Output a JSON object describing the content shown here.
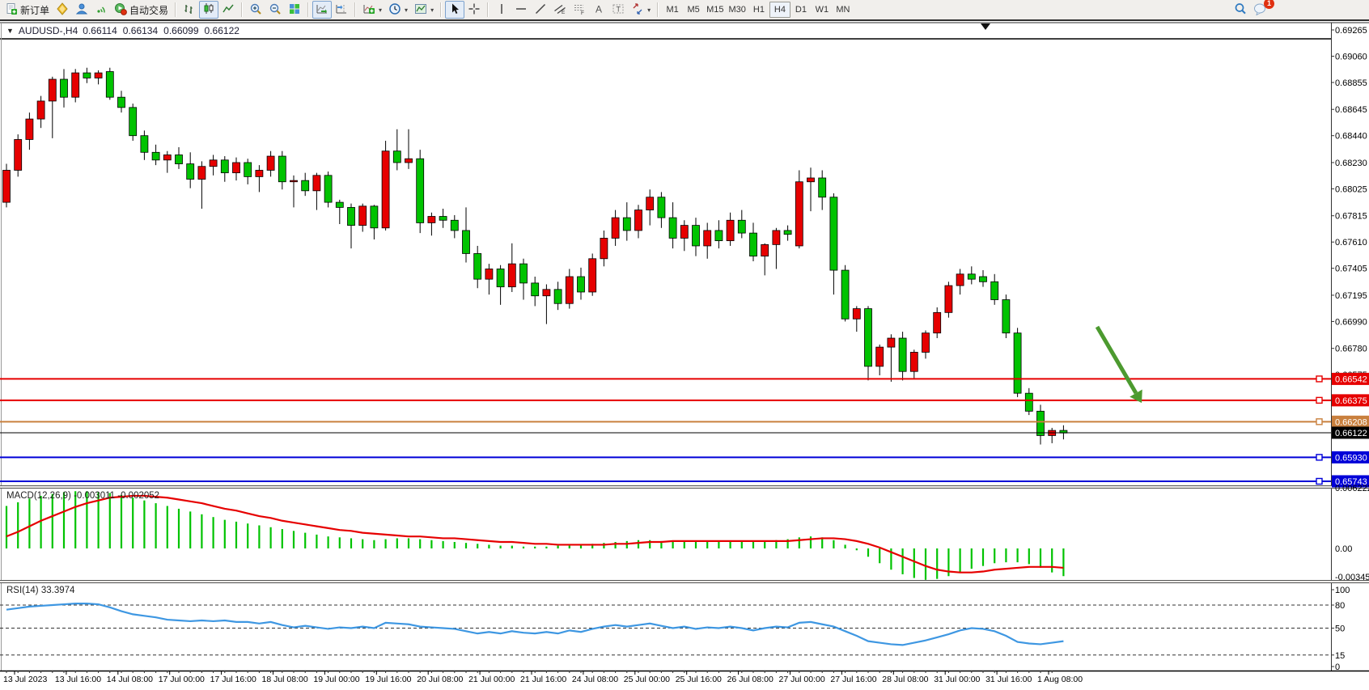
{
  "toolbar": {
    "new_order_label": "新订单",
    "autotrading_label": "自动交易",
    "timeframes": [
      "M1",
      "M5",
      "M15",
      "M30",
      "H1",
      "H4",
      "D1",
      "W1",
      "MN"
    ],
    "active_timeframe": "H4",
    "notification_badge": "1"
  },
  "chart_header": {
    "symbol_period": "AUDUSD-,H4",
    "open": "0.66114",
    "high": "0.66134",
    "low": "0.66099",
    "close": "0.66122"
  },
  "price_axis_ticks": [
    "0.69265",
    "0.69060",
    "0.68855",
    "0.68645",
    "0.68440",
    "0.68230",
    "0.68025",
    "0.67815",
    "0.67610",
    "0.67405",
    "0.67195",
    "0.66990",
    "0.66780",
    "0.66575",
    "0.66370",
    "0.66160",
    "0.65955",
    "0.65745"
  ],
  "time_axis_labels": [
    "13 Jul 2023",
    "13 Jul 16:00",
    "14 Jul 08:00",
    "17 Jul 00:00",
    "17 Jul 16:00",
    "18 Jul 08:00",
    "19 Jul 00:00",
    "19 Jul 16:00",
    "20 Jul 08:00",
    "21 Jul 00:00",
    "21 Jul 16:00",
    "24 Jul 08:00",
    "25 Jul 00:00",
    "25 Jul 16:00",
    "26 Jul 08:00",
    "27 Jul 00:00",
    "27 Jul 16:00",
    "28 Jul 08:00",
    "31 Jul 00:00",
    "31 Jul 16:00",
    "1 Aug 08:00"
  ],
  "horizontal_lines": [
    {
      "price": 0.66542,
      "label": "0.66542",
      "color": "#e60000",
      "width": 2,
      "handle": true
    },
    {
      "price": 0.66375,
      "label": "0.66375",
      "color": "#e60000",
      "width": 2,
      "handle": true
    },
    {
      "price": 0.66208,
      "label": "0.66208",
      "color": "#c9803e",
      "width": 2,
      "handle": true
    },
    {
      "price": 0.66122,
      "label": "0.66122",
      "color": "#000000",
      "width": 1,
      "handle": false
    },
    {
      "price": 0.6593,
      "label": "0.65930",
      "color": "#0000d8",
      "width": 2,
      "handle": true
    },
    {
      "price": 0.65743,
      "label": "0.65743",
      "color": "#0000d8",
      "width": 2,
      "handle": true
    }
  ],
  "indicators": {
    "macd": {
      "name": "MACD(12,26,9)",
      "value_main": "-0.003011",
      "value_signal": "-0.002052",
      "axis": [
        "0.006222",
        "0.00",
        "-0.003451"
      ],
      "hist_color": "#00c300",
      "signal_color": "#e60000"
    },
    "rsi": {
      "name": "RSI(14)",
      "value": "33.3974",
      "axis": [
        "100",
        "80",
        "50",
        "15",
        "0"
      ],
      "levels": [
        80,
        50,
        15
      ],
      "line_color": "#3e97e2"
    }
  },
  "annotation": {
    "type": "down-arrow",
    "color": "#4c9a2f",
    "from": [
      1356,
      404
    ],
    "to": [
      1404,
      486
    ]
  },
  "chart_data": {
    "type": "candlestick",
    "symbol": "AUDUSD",
    "timeframe": "H4",
    "title": "AUDUSD-,H4",
    "ohlc_current": {
      "open": 0.66114,
      "high": 0.66134,
      "low": 0.66099,
      "close": 0.66122
    },
    "up_color": "#e60000",
    "down_color": "#00c300",
    "wick_color": "#000000",
    "y_range": [
      0.65743,
      0.69265
    ],
    "grid": false,
    "candles": [
      [
        0.6792,
        0.6822,
        0.6788,
        0.6817
      ],
      [
        0.6817,
        0.6845,
        0.6812,
        0.6841
      ],
      [
        0.6841,
        0.6862,
        0.6833,
        0.6857
      ],
      [
        0.6857,
        0.6875,
        0.685,
        0.6871
      ],
      [
        0.6871,
        0.689,
        0.6842,
        0.6888
      ],
      [
        0.6888,
        0.6896,
        0.6866,
        0.6874
      ],
      [
        0.6874,
        0.6896,
        0.687,
        0.6893
      ],
      [
        0.6893,
        0.6897,
        0.6885,
        0.6889
      ],
      [
        0.6889,
        0.6895,
        0.6884,
        0.6893
      ],
      [
        0.6894,
        0.6897,
        0.6872,
        0.6874
      ],
      [
        0.6874,
        0.6879,
        0.6862,
        0.6866
      ],
      [
        0.6866,
        0.6869,
        0.684,
        0.6844
      ],
      [
        0.6844,
        0.6848,
        0.6825,
        0.6831
      ],
      [
        0.6831,
        0.6837,
        0.6821,
        0.6825
      ],
      [
        0.6825,
        0.6832,
        0.6815,
        0.6829
      ],
      [
        0.6829,
        0.6835,
        0.6818,
        0.6822
      ],
      [
        0.6822,
        0.6831,
        0.6803,
        0.681
      ],
      [
        0.681,
        0.6824,
        0.6787,
        0.682
      ],
      [
        0.682,
        0.6829,
        0.6813,
        0.6825
      ],
      [
        0.6825,
        0.6828,
        0.6808,
        0.6815
      ],
      [
        0.6815,
        0.6827,
        0.6809,
        0.6823
      ],
      [
        0.6823,
        0.6826,
        0.6806,
        0.6812
      ],
      [
        0.6812,
        0.6821,
        0.68,
        0.6817
      ],
      [
        0.6817,
        0.6832,
        0.6812,
        0.6828
      ],
      [
        0.6828,
        0.6832,
        0.6802,
        0.6808
      ],
      [
        0.6808,
        0.6813,
        0.6788,
        0.6809
      ],
      [
        0.6809,
        0.6815,
        0.6797,
        0.6801
      ],
      [
        0.6801,
        0.6815,
        0.6786,
        0.6813
      ],
      [
        0.6813,
        0.6816,
        0.6788,
        0.6792
      ],
      [
        0.6792,
        0.6794,
        0.6775,
        0.6788
      ],
      [
        0.6788,
        0.6791,
        0.6756,
        0.6774
      ],
      [
        0.6774,
        0.6791,
        0.6769,
        0.6789
      ],
      [
        0.6789,
        0.679,
        0.6763,
        0.6772
      ],
      [
        0.6772,
        0.684,
        0.677,
        0.6832
      ],
      [
        0.6832,
        0.6849,
        0.6817,
        0.6823
      ],
      [
        0.6823,
        0.6849,
        0.6818,
        0.6826
      ],
      [
        0.6826,
        0.6833,
        0.6768,
        0.6776
      ],
      [
        0.6776,
        0.6784,
        0.6766,
        0.6781
      ],
      [
        0.6781,
        0.6787,
        0.6772,
        0.6778
      ],
      [
        0.6778,
        0.6782,
        0.6764,
        0.677
      ],
      [
        0.677,
        0.6788,
        0.6745,
        0.6752
      ],
      [
        0.6752,
        0.6758,
        0.6725,
        0.6732
      ],
      [
        0.6732,
        0.6744,
        0.672,
        0.674
      ],
      [
        0.674,
        0.6743,
        0.6712,
        0.6726
      ],
      [
        0.6726,
        0.676,
        0.6722,
        0.6744
      ],
      [
        0.6744,
        0.6748,
        0.6716,
        0.6729
      ],
      [
        0.6729,
        0.6734,
        0.6711,
        0.6719
      ],
      [
        0.6719,
        0.6728,
        0.6697,
        0.6724
      ],
      [
        0.6724,
        0.673,
        0.6708,
        0.6713
      ],
      [
        0.6713,
        0.674,
        0.6709,
        0.6734
      ],
      [
        0.6734,
        0.6741,
        0.6716,
        0.6722
      ],
      [
        0.6722,
        0.6752,
        0.6719,
        0.6748
      ],
      [
        0.6748,
        0.677,
        0.6742,
        0.6764
      ],
      [
        0.6764,
        0.6786,
        0.6758,
        0.678
      ],
      [
        0.678,
        0.6792,
        0.6762,
        0.677
      ],
      [
        0.677,
        0.679,
        0.6764,
        0.6786
      ],
      [
        0.6786,
        0.6802,
        0.6774,
        0.6796
      ],
      [
        0.6796,
        0.68,
        0.6772,
        0.678
      ],
      [
        0.678,
        0.6792,
        0.6756,
        0.6764
      ],
      [
        0.6764,
        0.6778,
        0.6754,
        0.6774
      ],
      [
        0.6774,
        0.678,
        0.675,
        0.6758
      ],
      [
        0.6758,
        0.6776,
        0.6748,
        0.677
      ],
      [
        0.677,
        0.6778,
        0.6756,
        0.6762
      ],
      [
        0.6762,
        0.6784,
        0.6758,
        0.6778
      ],
      [
        0.6778,
        0.6786,
        0.6764,
        0.6768
      ],
      [
        0.6768,
        0.6776,
        0.6746,
        0.675
      ],
      [
        0.675,
        0.676,
        0.6735,
        0.6759
      ],
      [
        0.6759,
        0.6772,
        0.674,
        0.677
      ],
      [
        0.677,
        0.6774,
        0.6762,
        0.6767
      ],
      [
        0.6758,
        0.6817,
        0.6756,
        0.6808
      ],
      [
        0.6808,
        0.6819,
        0.6785,
        0.6811
      ],
      [
        0.6811,
        0.6817,
        0.6786,
        0.6796
      ],
      [
        0.6796,
        0.6799,
        0.672,
        0.6739
      ],
      [
        0.6739,
        0.6743,
        0.6699,
        0.6701
      ],
      [
        0.6701,
        0.6711,
        0.6691,
        0.6709
      ],
      [
        0.6709,
        0.6711,
        0.6653,
        0.6664
      ],
      [
        0.6664,
        0.6681,
        0.6657,
        0.6679
      ],
      [
        0.6679,
        0.6689,
        0.6652,
        0.6686
      ],
      [
        0.6686,
        0.6691,
        0.6653,
        0.666
      ],
      [
        0.666,
        0.6677,
        0.6654,
        0.6675
      ],
      [
        0.6675,
        0.6692,
        0.667,
        0.669
      ],
      [
        0.669,
        0.671,
        0.6686,
        0.6706
      ],
      [
        0.6706,
        0.673,
        0.6702,
        0.6727
      ],
      [
        0.6727,
        0.674,
        0.672,
        0.6736
      ],
      [
        0.6736,
        0.6742,
        0.6728,
        0.6732
      ],
      [
        0.6734,
        0.6739,
        0.6726,
        0.673
      ],
      [
        0.673,
        0.6736,
        0.6712,
        0.6716
      ],
      [
        0.6716,
        0.672,
        0.6686,
        0.669
      ],
      [
        0.669,
        0.6694,
        0.664,
        0.6643
      ],
      [
        0.6643,
        0.6647,
        0.6626,
        0.6629
      ],
      [
        0.6629,
        0.6634,
        0.6603,
        0.661
      ],
      [
        0.661,
        0.6616,
        0.6604,
        0.6614
      ],
      [
        0.6614,
        0.6618,
        0.6607,
        0.6612
      ]
    ],
    "macd_hist": [
      0.0046,
      0.005,
      0.0054,
      0.0057,
      0.0059,
      0.0061,
      0.0062,
      0.0062,
      0.0061,
      0.006,
      0.0058,
      0.0055,
      0.0052,
      0.0049,
      0.0046,
      0.0043,
      0.004,
      0.0037,
      0.0034,
      0.0031,
      0.0029,
      0.0027,
      0.0025,
      0.0023,
      0.0021,
      0.0019,
      0.0017,
      0.0015,
      0.0013,
      0.0012,
      0.0011,
      0.001,
      0.0009,
      0.001,
      0.0011,
      0.0011,
      0.001,
      0.0009,
      0.0008,
      0.0007,
      0.0006,
      0.0005,
      0.0004,
      0.0003,
      0.0003,
      0.0002,
      0.0002,
      0.0002,
      0.0003,
      0.0003,
      0.0004,
      0.0005,
      0.0006,
      0.0007,
      0.0008,
      0.0009,
      0.0009,
      0.0008,
      0.0007,
      0.0007,
      0.0007,
      0.0008,
      0.0008,
      0.0008,
      0.0007,
      0.0007,
      0.0008,
      0.0009,
      0.001,
      0.0012,
      0.0013,
      0.0012,
      0.0009,
      0.0004,
      -0.0002,
      -0.0009,
      -0.0016,
      -0.0023,
      -0.0028,
      -0.0032,
      -0.0034,
      -0.0033,
      -0.003,
      -0.0026,
      -0.0022,
      -0.0019,
      -0.0016,
      -0.0015,
      -0.0015,
      -0.0017,
      -0.0021,
      -0.0026,
      -0.003
    ],
    "macd_signal": [
      0.0013,
      0.0018,
      0.0024,
      0.003,
      0.0035,
      0.004,
      0.0045,
      0.0049,
      0.0052,
      0.0055,
      0.0056,
      0.0057,
      0.0057,
      0.0056,
      0.0055,
      0.0053,
      0.0051,
      0.0049,
      0.0046,
      0.0043,
      0.0041,
      0.0038,
      0.0035,
      0.0033,
      0.003,
      0.0028,
      0.0026,
      0.0024,
      0.0022,
      0.002,
      0.0019,
      0.0017,
      0.0016,
      0.0015,
      0.0014,
      0.0013,
      0.0013,
      0.0012,
      0.0011,
      0.0011,
      0.001,
      0.0009,
      0.0008,
      0.0007,
      0.0007,
      0.0006,
      0.0005,
      0.0005,
      0.0004,
      0.0004,
      0.0004,
      0.0004,
      0.0004,
      0.0005,
      0.0005,
      0.0006,
      0.0007,
      0.0007,
      0.0008,
      0.0008,
      0.0008,
      0.0008,
      0.0008,
      0.0008,
      0.0008,
      0.0008,
      0.0008,
      0.0008,
      0.0008,
      0.0009,
      0.001,
      0.0011,
      0.0011,
      0.001,
      0.0008,
      0.0005,
      0.0001,
      -0.0004,
      -0.0009,
      -0.0014,
      -0.0019,
      -0.0023,
      -0.0025,
      -0.0026,
      -0.0026,
      -0.0025,
      -0.0023,
      -0.0022,
      -0.0021,
      -0.002,
      -0.002,
      -0.002,
      -0.0021
    ],
    "rsi": [
      74,
      76,
      78,
      79,
      80,
      81,
      82,
      82,
      81,
      77,
      72,
      68,
      66,
      64,
      61,
      60,
      59,
      60,
      59,
      60,
      58,
      58,
      56,
      58,
      54,
      51,
      53,
      51,
      49,
      51,
      50,
      52,
      50,
      57,
      56,
      55,
      52,
      51,
      50,
      49,
      46,
      43,
      45,
      43,
      46,
      44,
      43,
      45,
      43,
      47,
      45,
      49,
      52,
      54,
      52,
      54,
      56,
      53,
      50,
      52,
      49,
      51,
      50,
      52,
      50,
      47,
      50,
      52,
      51,
      57,
      58,
      55,
      52,
      46,
      40,
      33,
      31,
      29,
      28,
      31,
      34,
      38,
      42,
      47,
      50,
      49,
      46,
      40,
      32,
      30,
      29,
      31,
      33
    ]
  }
}
